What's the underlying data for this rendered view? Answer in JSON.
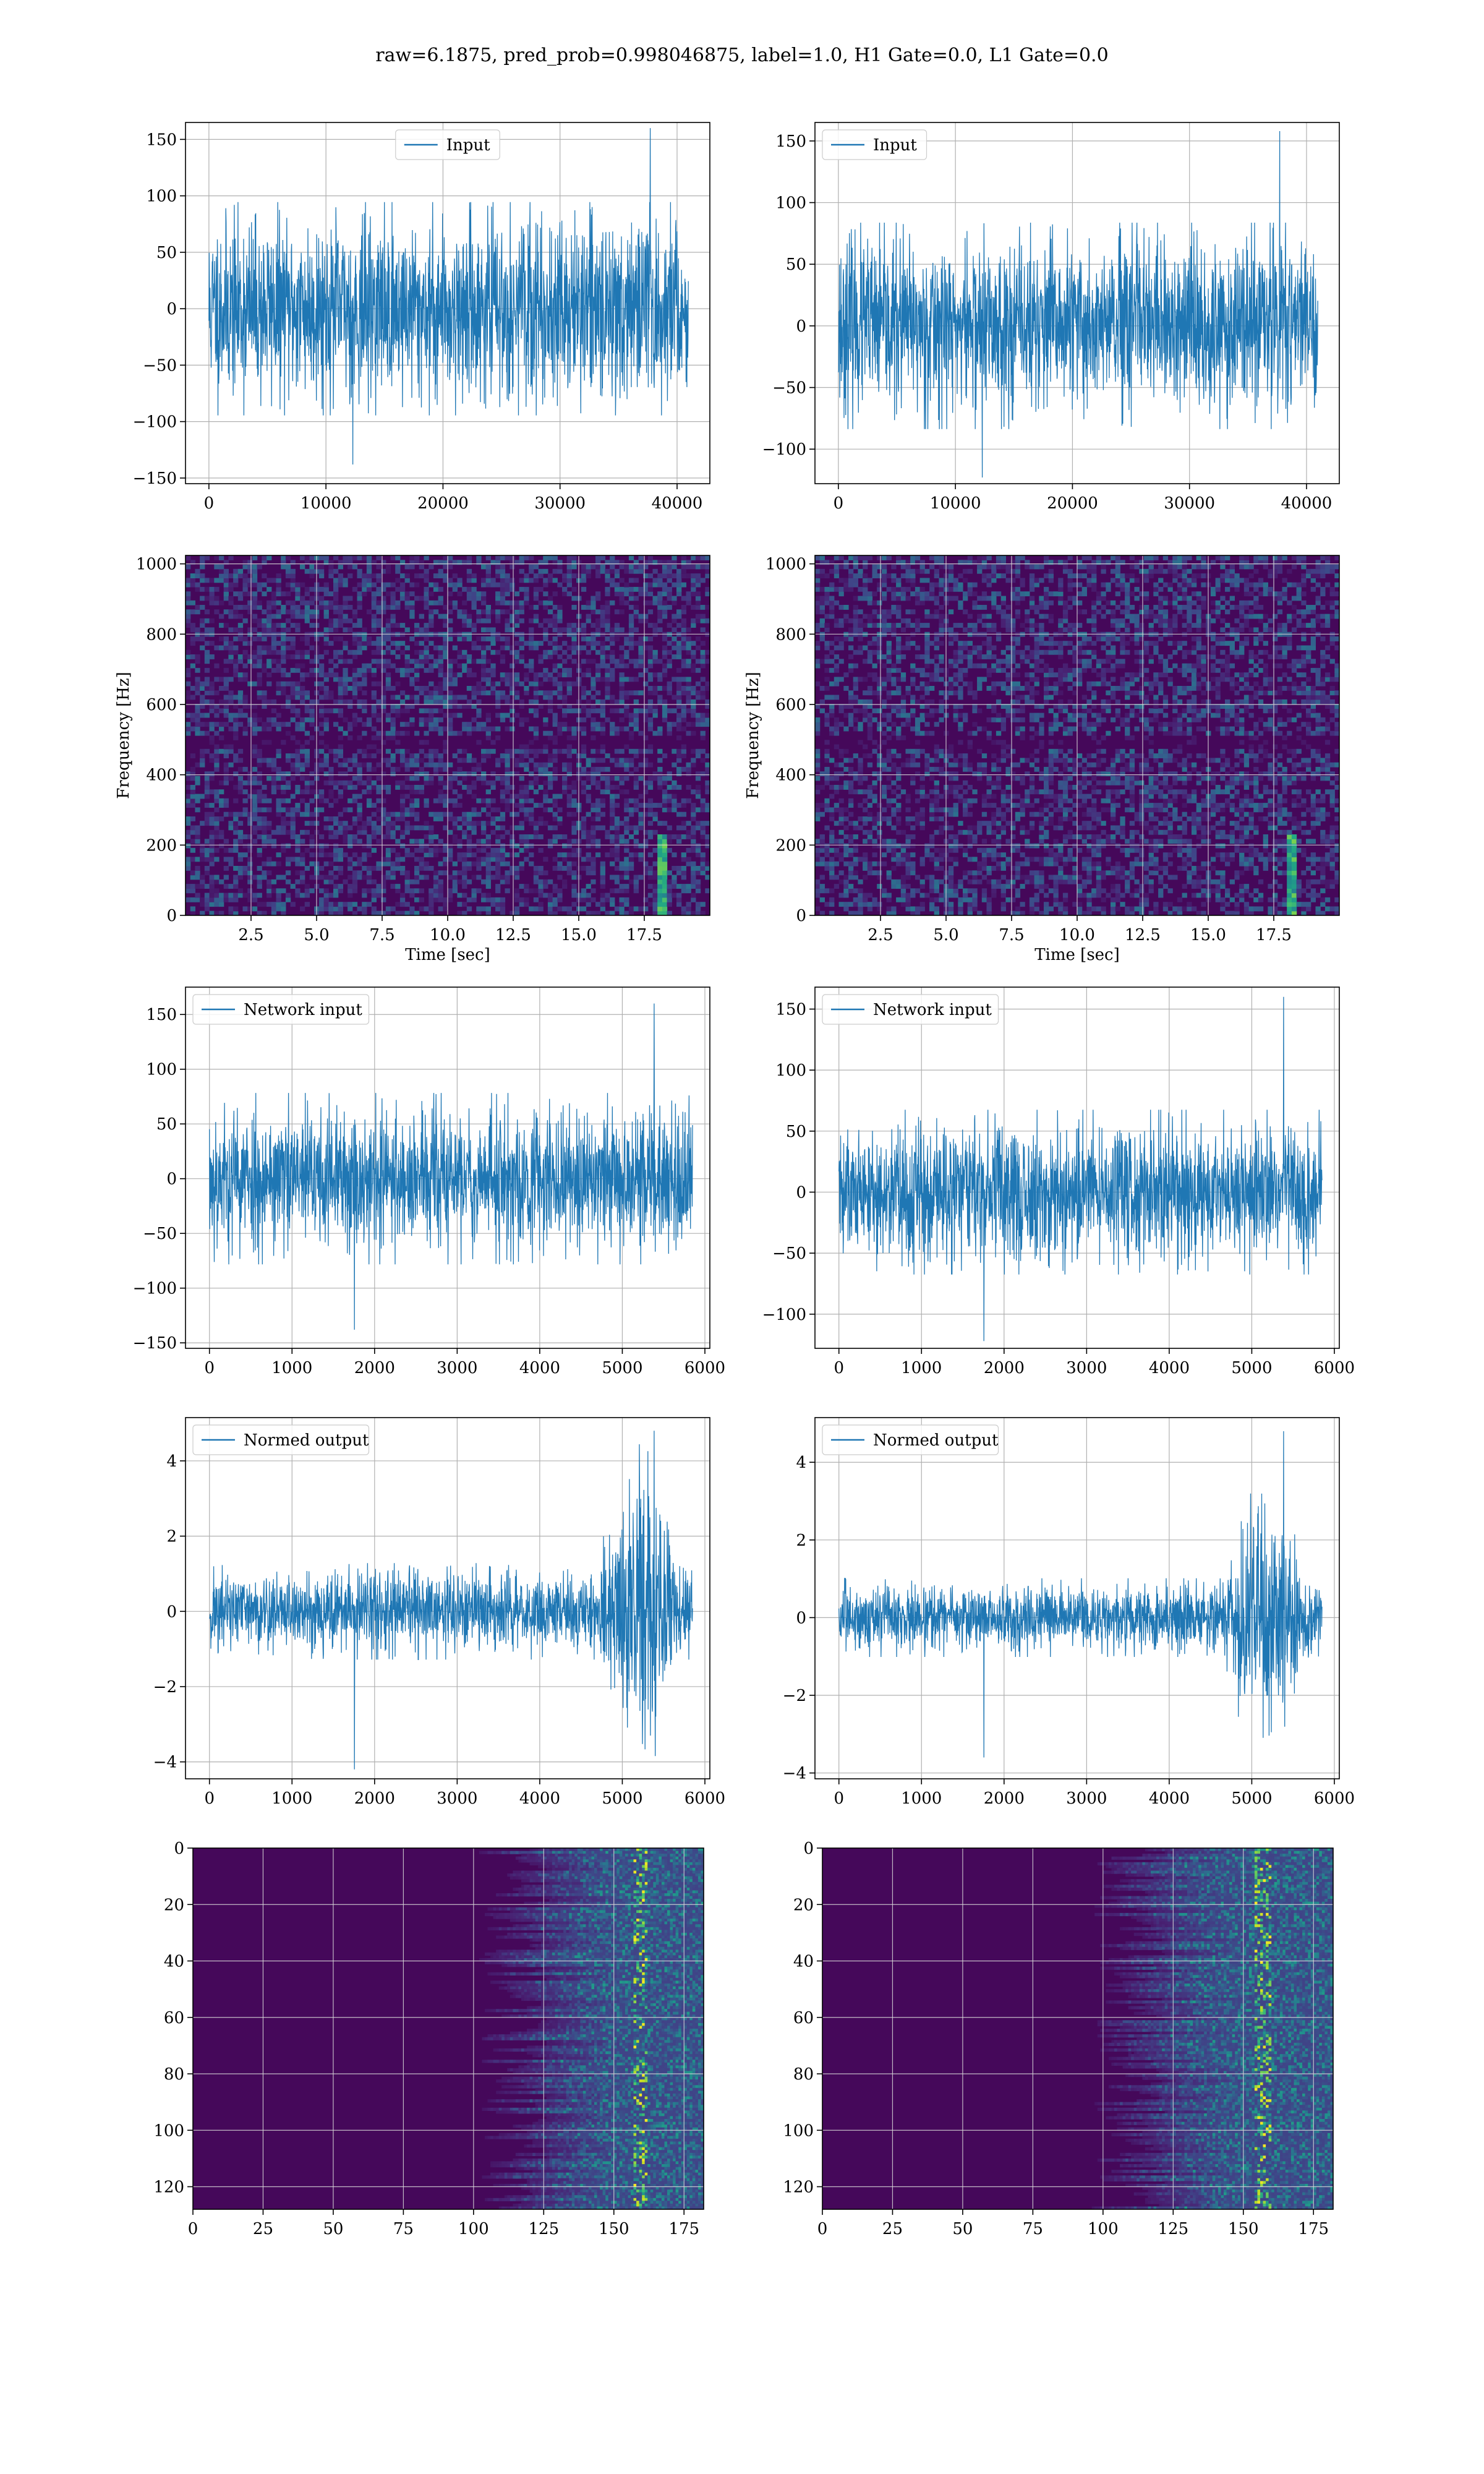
{
  "suptitle": "raw=6.1875, pred_prob=0.998046875, label=1.0, H1 Gate=0.0, L1 Gate=0.0",
  "colors": {
    "series": "#1f77b4",
    "grid": "#b0b0b0",
    "viridis_dark": "#440154",
    "viridis_bright": "#fde725"
  },
  "chart_data": [
    {
      "id": "input-h1",
      "type": "line",
      "legend": "Input",
      "legend_loc": "upper center",
      "xlim": [
        -2000,
        42800
      ],
      "ylim": [
        -155,
        165
      ],
      "xticks": [
        0,
        10000,
        20000,
        30000,
        40000
      ],
      "yticks": [
        -150,
        -100,
        -50,
        0,
        50,
        100,
        150
      ],
      "xlabel": "",
      "ylabel": "",
      "grid": true,
      "x_range": [
        0,
        40960
      ],
      "envelope": 70,
      "peak_max": 160,
      "peak_min": -138,
      "seed": 11
    },
    {
      "id": "input-l1",
      "type": "line",
      "legend": "Input",
      "legend_loc": "upper left",
      "xlim": [
        -2000,
        42800
      ],
      "ylim": [
        -128,
        165
      ],
      "xticks": [
        0,
        10000,
        20000,
        30000,
        40000
      ],
      "yticks": [
        -100,
        -50,
        0,
        50,
        100,
        150
      ],
      "xlabel": "",
      "ylabel": "",
      "grid": true,
      "x_range": [
        0,
        40960
      ],
      "envelope": 62,
      "peak_max": 158,
      "peak_min": -123,
      "seed": 23
    },
    {
      "id": "spec-h1",
      "type": "heatmap",
      "colormap": "viridis",
      "xlim": [
        0,
        20
      ],
      "ylim": [
        0,
        1024
      ],
      "xticks": [
        2.5,
        5.0,
        7.5,
        10.0,
        12.5,
        15.0,
        17.5
      ],
      "yticks": [
        0,
        200,
        400,
        600,
        800,
        1000
      ],
      "xlabel": "Time [sec]",
      "ylabel": "Frequency [Hz]",
      "grid": true,
      "chirp_time": 18.2,
      "seed": 31
    },
    {
      "id": "spec-l1",
      "type": "heatmap",
      "colormap": "viridis",
      "xlim": [
        0,
        20
      ],
      "ylim": [
        0,
        1024
      ],
      "xticks": [
        2.5,
        5.0,
        7.5,
        10.0,
        12.5,
        15.0,
        17.5
      ],
      "yticks": [
        0,
        200,
        400,
        600,
        800,
        1000
      ],
      "xlabel": "Time [sec]",
      "ylabel": "Frequency [Hz]",
      "grid": true,
      "chirp_time": 18.1,
      "seed": 47
    },
    {
      "id": "net-h1",
      "type": "line",
      "legend": "Network input",
      "legend_loc": "upper left",
      "xlim": [
        -290,
        6060
      ],
      "ylim": [
        -155,
        175
      ],
      "xticks": [
        0,
        1000,
        2000,
        3000,
        4000,
        5000,
        6000
      ],
      "yticks": [
        -150,
        -100,
        -50,
        0,
        50,
        100,
        150
      ],
      "xlabel": "",
      "ylabel": "",
      "grid": true,
      "x_range": [
        0,
        5850
      ],
      "envelope": 58,
      "peak_max": 160,
      "peak_min": -138,
      "seed": 53
    },
    {
      "id": "net-l1",
      "type": "line",
      "legend": "Network input",
      "legend_loc": "upper left",
      "xlim": [
        -290,
        6060
      ],
      "ylim": [
        -128,
        168
      ],
      "xticks": [
        0,
        1000,
        2000,
        3000,
        4000,
        5000,
        6000
      ],
      "yticks": [
        -100,
        -50,
        0,
        50,
        100,
        150
      ],
      "xlabel": "",
      "ylabel": "",
      "grid": true,
      "x_range": [
        0,
        5850
      ],
      "envelope": 50,
      "peak_max": 160,
      "peak_min": -122,
      "seed": 61
    },
    {
      "id": "norm-h1",
      "type": "line",
      "legend": "Normed output",
      "legend_loc": "upper left",
      "xlim": [
        -290,
        6060
      ],
      "ylim": [
        -4.45,
        5.15
      ],
      "xticks": [
        0,
        1000,
        2000,
        3000,
        4000,
        5000,
        6000
      ],
      "yticks": [
        -4,
        -2,
        0,
        2,
        4
      ],
      "xlabel": "",
      "ylabel": "",
      "grid": true,
      "x_range": [
        0,
        5850
      ],
      "envelope": 0.95,
      "burst_start": 4700,
      "burst_amp": 2.6,
      "peak_max": 4.8,
      "peak_min": -4.2,
      "seed": 71
    },
    {
      "id": "norm-l1",
      "type": "line",
      "legend": "Normed output",
      "legend_loc": "upper left",
      "xlim": [
        -290,
        6060
      ],
      "ylim": [
        -4.15,
        5.15
      ],
      "xticks": [
        0,
        1000,
        2000,
        3000,
        4000,
        5000,
        6000
      ],
      "yticks": [
        -4,
        -2,
        0,
        2,
        4
      ],
      "xlabel": "",
      "ylabel": "",
      "grid": true,
      "x_range": [
        0,
        5850
      ],
      "envelope": 0.75,
      "burst_start": 4600,
      "burst_amp": 2.0,
      "peak_max": 4.8,
      "peak_min": -3.6,
      "seed": 83
    },
    {
      "id": "feat-h1",
      "type": "heatmap",
      "colormap": "viridis",
      "xlim": [
        0,
        182
      ],
      "ylim": [
        128,
        0
      ],
      "xticks": [
        0,
        25,
        50,
        75,
        100,
        125,
        150,
        175
      ],
      "yticks": [
        0,
        20,
        40,
        60,
        80,
        100,
        120
      ],
      "xlabel": "",
      "ylabel": "",
      "grid": true,
      "activity_start": 125,
      "hot_columns": [
        158,
        160
      ],
      "seed": 97
    },
    {
      "id": "feat-l1",
      "type": "heatmap",
      "colormap": "viridis",
      "xlim": [
        0,
        182
      ],
      "ylim": [
        128,
        0
      ],
      "xticks": [
        0,
        25,
        50,
        75,
        100,
        125,
        150,
        175
      ],
      "yticks": [
        0,
        20,
        40,
        60,
        80,
        100,
        120
      ],
      "xlabel": "",
      "ylabel": "",
      "grid": true,
      "activity_start": 120,
      "hot_columns": [
        155,
        158
      ],
      "seed": 109
    }
  ]
}
